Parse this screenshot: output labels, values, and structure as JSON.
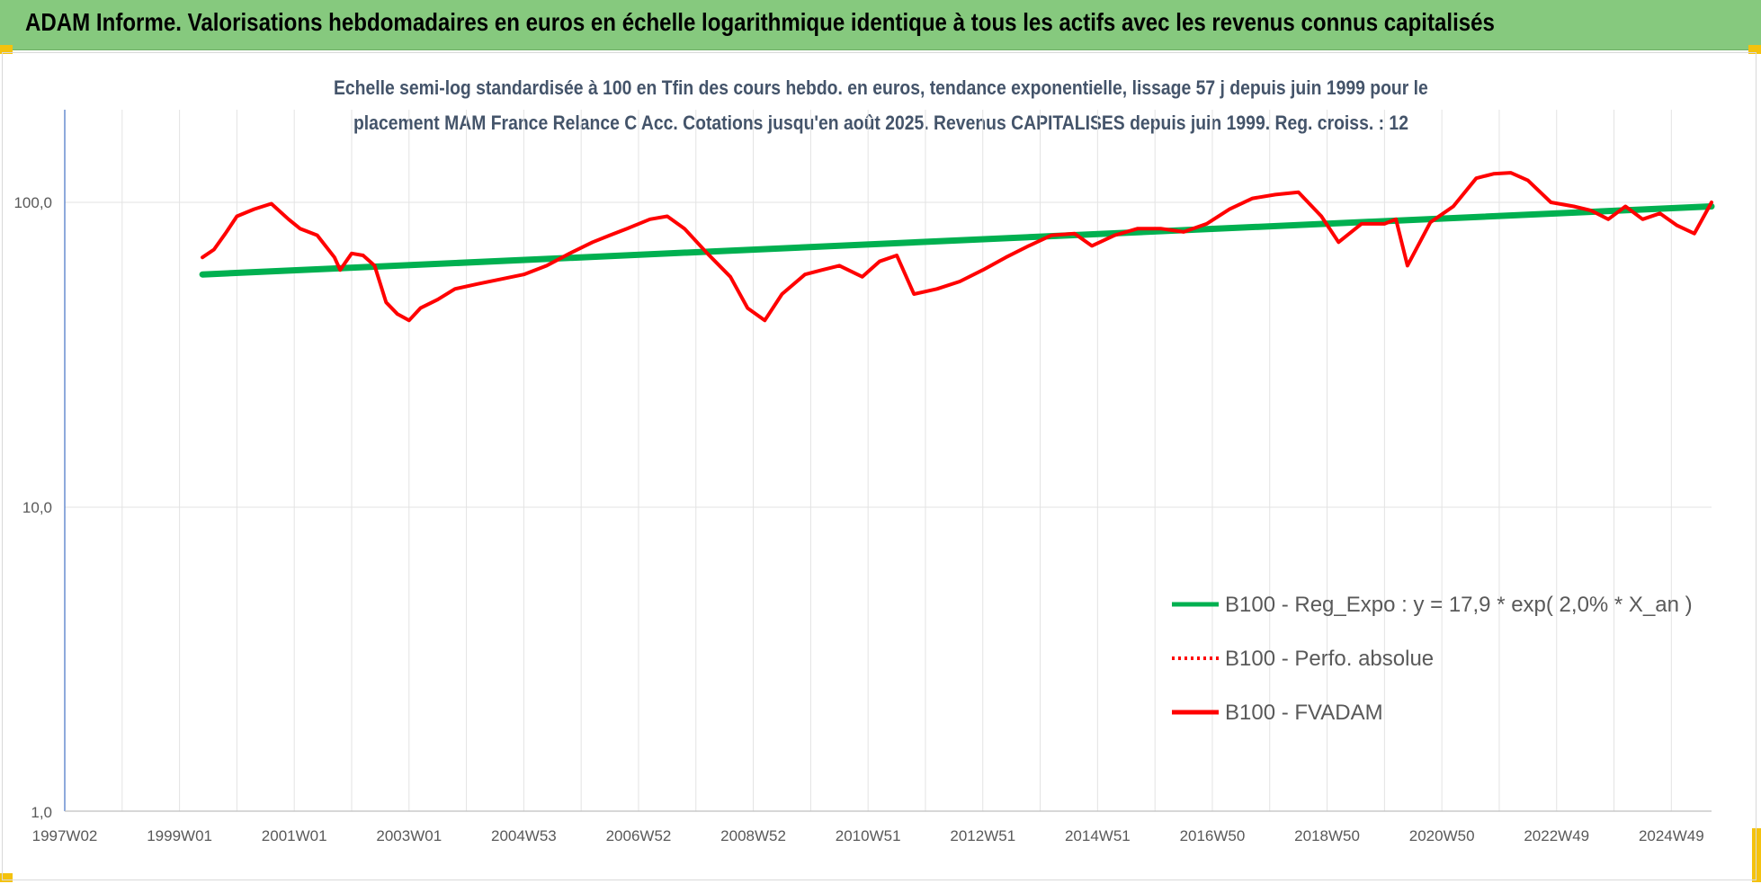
{
  "banner": {
    "title": "ADAM Informe. Valorisations hebdomadaires en euros en échelle logarithmique identique à tous les actifs avec les revenus connus capitalisés"
  },
  "chart_data": {
    "type": "line",
    "title_line1": "Echelle semi-log standardisée à 100 en Tfin des cours hebdo. en euros, tendance exponentielle, lissage 57 j depuis juin 1999 pour le",
    "title_line2": "placement MAM France Relance C Acc. Cotations jusqu'en août 2025. Revenus CAPITALISES depuis juin 1999. Reg. croiss. : 12",
    "y_scale": "log",
    "ylim": [
      1,
      200
    ],
    "y_ticks": [
      {
        "value": 1,
        "label": "1,0"
      },
      {
        "value": 10,
        "label": "10,0"
      },
      {
        "value": 100,
        "label": "100,0"
      }
    ],
    "xlim": [
      1997.0,
      2025.7
    ],
    "x_ticks": [
      {
        "value": 1997.0,
        "label": "1997W02"
      },
      {
        "value": 1999.0,
        "label": "1999W01"
      },
      {
        "value": 2001.0,
        "label": "2001W01"
      },
      {
        "value": 2003.0,
        "label": "2003W01"
      },
      {
        "value": 2005.0,
        "label": "2004W53"
      },
      {
        "value": 2007.0,
        "label": "2006W52"
      },
      {
        "value": 2009.0,
        "label": "2008W52"
      },
      {
        "value": 2011.0,
        "label": "2010W51"
      },
      {
        "value": 2013.0,
        "label": "2012W51"
      },
      {
        "value": 2015.0,
        "label": "2014W51"
      },
      {
        "value": 2017.0,
        "label": "2016W50"
      },
      {
        "value": 2019.0,
        "label": "2018W50"
      },
      {
        "value": 2021.0,
        "label": "2020W50"
      },
      {
        "value": 2023.0,
        "label": "2022W49"
      },
      {
        "value": 2025.0,
        "label": "2024W49"
      }
    ],
    "grid": "vertical",
    "legend_position": "bottom-right",
    "series": [
      {
        "name": "B100 - Reg_Expo : y = 17,9 * exp( 2,0% *  X_an )",
        "color": "#00b050",
        "style": "solid",
        "x": [
          1999.4,
          2025.7
        ],
        "y": [
          58,
          97
        ]
      },
      {
        "name": "B100 - Perfo. absolue",
        "color": "#ff0000",
        "style": "dotted",
        "x": [],
        "y": []
      },
      {
        "name": "B100 - FVADAM",
        "color": "#ff0000",
        "style": "solid",
        "x": [
          1999.4,
          1999.6,
          1999.8,
          2000.0,
          2000.3,
          2000.6,
          2000.9,
          2001.1,
          2001.4,
          2001.7,
          2001.8,
          2002.0,
          2002.2,
          2002.4,
          2002.6,
          2002.8,
          2003.0,
          2003.2,
          2003.5,
          2003.8,
          2004.2,
          2004.6,
          2005.0,
          2005.4,
          2005.8,
          2006.2,
          2006.5,
          2006.8,
          2007.2,
          2007.5,
          2007.8,
          2008.2,
          2008.6,
          2008.9,
          2009.2,
          2009.5,
          2009.9,
          2010.2,
          2010.5,
          2010.9,
          2011.2,
          2011.5,
          2011.8,
          2012.2,
          2012.6,
          2013.0,
          2013.4,
          2013.8,
          2014.2,
          2014.6,
          2014.9,
          2015.3,
          2015.7,
          2016.1,
          2016.5,
          2016.9,
          2017.3,
          2017.7,
          2018.1,
          2018.5,
          2018.9,
          2019.2,
          2019.6,
          2020.0,
          2020.2,
          2020.4,
          2020.8,
          2021.2,
          2021.6,
          2021.9,
          2022.2,
          2022.5,
          2022.9,
          2023.3,
          2023.6,
          2023.9,
          2024.2,
          2024.5,
          2024.8,
          2025.1,
          2025.4,
          2025.7
        ],
        "y": [
          66,
          70,
          79,
          90,
          95,
          99,
          88,
          82,
          78,
          66,
          60,
          68,
          67,
          62,
          47,
          43,
          41,
          45,
          48,
          52,
          54,
          56,
          58,
          62,
          68,
          74,
          78,
          82,
          88,
          90,
          82,
          68,
          57,
          45,
          41,
          50,
          58,
          60,
          62,
          57,
          64,
          67,
          50,
          52,
          55,
          60,
          66,
          72,
          78,
          79,
          72,
          78,
          82,
          82,
          80,
          85,
          95,
          103,
          106,
          108,
          90,
          74,
          85,
          85,
          88,
          62,
          86,
          97,
          120,
          124,
          125,
          118,
          100,
          97,
          94,
          88,
          97,
          88,
          92,
          84,
          79,
          100
        ]
      }
    ]
  }
}
